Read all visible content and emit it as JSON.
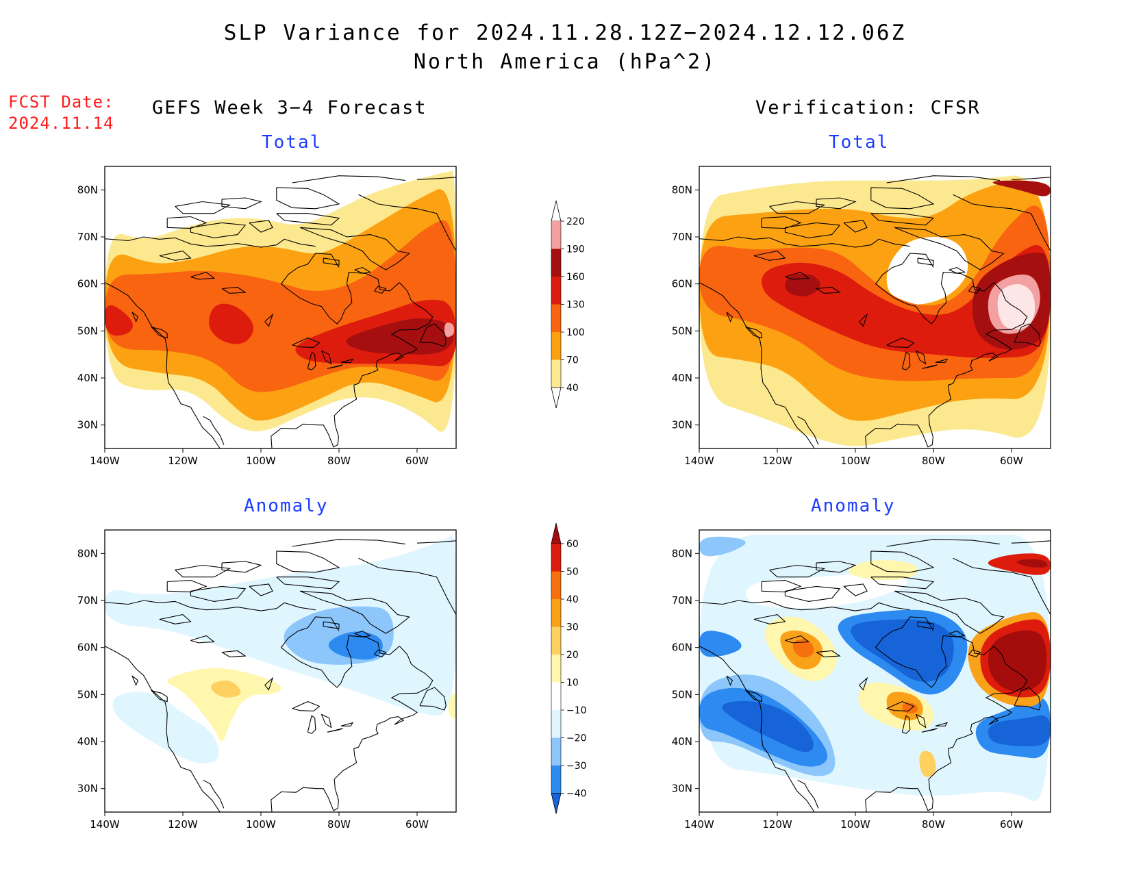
{
  "header": {
    "title": "SLP Variance for 2024.11.28.12Z−2024.12.12.06Z",
    "subtitle": "North America (hPa^2)",
    "fcst_label": "FCST Date:",
    "fcst_date": "2024.11.14",
    "left_column": "GEFS Week 3−4 Forecast",
    "right_column": "Verification: CFSR"
  },
  "panels": [
    {
      "id": "forecast-total",
      "title": "Total",
      "field": "total",
      "source": "gefs"
    },
    {
      "id": "verification-total",
      "title": "Total",
      "field": "total",
      "source": "cfsr"
    },
    {
      "id": "forecast-anomaly",
      "title": "Anomaly",
      "field": "anomaly",
      "source": "gefs"
    },
    {
      "id": "verification-anomaly",
      "title": "Anomaly",
      "field": "anomaly",
      "source": "cfsr"
    }
  ],
  "axes": {
    "lon_ticks": [
      "140W",
      "120W",
      "100W",
      "80W",
      "60W"
    ],
    "lon_values": [
      -140,
      -120,
      -100,
      -80,
      -60
    ],
    "lat_ticks": [
      "30N",
      "40N",
      "50N",
      "60N",
      "70N",
      "80N"
    ],
    "lat_values": [
      30,
      40,
      50,
      60,
      70,
      80
    ],
    "lon_range": [
      -140,
      -50
    ],
    "lat_range": [
      25,
      85
    ]
  },
  "colorbars": {
    "total": {
      "levels": [
        "40",
        "70",
        "100",
        "130",
        "160",
        "190",
        "220"
      ],
      "colors": [
        "#ffffff",
        "#fce88e",
        "#fca212",
        "#f86410",
        "#dd1c0d",
        "#a50f0f",
        "#f2a0a0",
        "#fde6e6"
      ]
    },
    "anomaly": {
      "levels": [
        "−40",
        "−30",
        "−20",
        "−10",
        "10",
        "20",
        "30",
        "40",
        "50",
        "60"
      ],
      "colors": [
        "#1764d9",
        "#2c8af0",
        "#8cc6fb",
        "#e0f6ff",
        "#ffffff",
        "#fff7ae",
        "#fdd060",
        "#faa11a",
        "#f6700f",
        "#dd1c0d",
        "#a50d0d"
      ]
    }
  }
}
